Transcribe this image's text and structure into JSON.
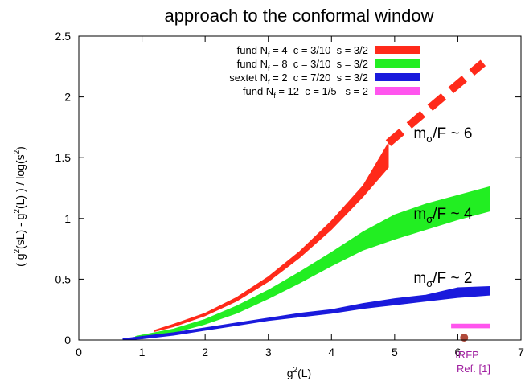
{
  "chart_data": {
    "type": "area",
    "title": "approach to the conformal window",
    "xlabel": "g²(L)",
    "ylabel": "( g²(sL) - g²(L) ) / log(s²)",
    "xlim": [
      0,
      7
    ],
    "ylim": [
      0,
      2.5
    ],
    "xticks": [
      "0",
      "1",
      "2",
      "3",
      "4",
      "5",
      "6",
      "7"
    ],
    "yticks": [
      "0",
      "0.5",
      "1",
      "1.5",
      "2",
      "2.5"
    ],
    "grid": false,
    "legend_position": "top-center",
    "legend": [
      {
        "label": "fund N_f = 4  c = 3/10  s = 3/2",
        "color": "#ff2a1a"
      },
      {
        "label": "fund N_f = 8  c = 3/10  s = 3/2",
        "color": "#22ee22"
      },
      {
        "label": "sextet N_f = 2  c = 7/20  s = 3/2",
        "color": "#1a1adc"
      },
      {
        "label": "fund N_f = 12  c = 1/5   s = 2",
        "color": "#ff55ee"
      }
    ],
    "series": [
      {
        "name": "fund N_f = 4  c = 3/10  s = 3/2",
        "color": "#ff2a1a",
        "x": [
          1.2,
          1.5,
          2.0,
          2.5,
          3.0,
          3.5,
          4.0,
          4.5,
          4.9
        ],
        "lower": [
          0.07,
          0.11,
          0.2,
          0.32,
          0.48,
          0.68,
          0.91,
          1.18,
          1.42
        ],
        "upper": [
          0.08,
          0.13,
          0.22,
          0.35,
          0.52,
          0.73,
          0.98,
          1.27,
          1.62
        ]
      },
      {
        "name": "fund N_f = 8  c = 3/10  s = 3/2",
        "color": "#22ee22",
        "x": [
          0.9,
          1.5,
          2.0,
          2.5,
          3.0,
          3.5,
          4.0,
          4.5,
          5.0,
          5.5,
          6.0,
          6.5
        ],
        "lower": [
          0.01,
          0.06,
          0.13,
          0.22,
          0.34,
          0.47,
          0.61,
          0.74,
          0.83,
          0.91,
          0.99,
          1.06
        ],
        "upper": [
          0.03,
          0.09,
          0.17,
          0.28,
          0.41,
          0.56,
          0.72,
          0.89,
          1.03,
          1.12,
          1.19,
          1.26
        ]
      },
      {
        "name": "sextet N_f = 2  c = 7/20  s = 3/2",
        "color": "#1a1adc",
        "x": [
          0.7,
          1.0,
          1.5,
          2.0,
          2.5,
          3.0,
          3.5,
          4.0,
          4.5,
          5.0,
          5.5,
          6.0,
          6.5
        ],
        "lower": [
          0.0,
          0.01,
          0.04,
          0.08,
          0.12,
          0.16,
          0.19,
          0.22,
          0.26,
          0.29,
          0.32,
          0.35,
          0.37
        ],
        "upper": [
          0.01,
          0.03,
          0.06,
          0.1,
          0.14,
          0.18,
          0.22,
          0.25,
          0.3,
          0.34,
          0.37,
          0.43,
          0.44
        ]
      },
      {
        "name": "fund N_f = 12  c = 1/5   s = 2",
        "color": "#ff55ee",
        "x": [
          5.9,
          6.5
        ],
        "lower": [
          0.1,
          0.1
        ],
        "upper": [
          0.13,
          0.13
        ]
      }
    ],
    "extrapolation": {
      "color": "#ff2a1a",
      "x": [
        4.9,
        6.4
      ],
      "y": [
        1.62,
        2.28
      ]
    },
    "irfp_point": {
      "x": 6.1,
      "y": 0.02,
      "color": "#b04a3a"
    },
    "annotations": [
      {
        "text": "mσ/F ~ 6",
        "base": "m",
        "sub": "σ",
        "rest": "/F ~ 6",
        "x": 5.3,
        "y": 1.66
      },
      {
        "text": "mσ/F ~ 4",
        "base": "m",
        "sub": "σ",
        "rest": "/F ~ 4",
        "x": 5.3,
        "y": 1.0
      },
      {
        "text": "mσ/F ~ 2",
        "base": "m",
        "sub": "σ",
        "rest": "/F ~ 2",
        "x": 5.3,
        "y": 0.47
      }
    ],
    "irfp_label": "IRFP",
    "irfp_ref": "Ref. [1]",
    "irfp_label_color": "#a020a0"
  }
}
